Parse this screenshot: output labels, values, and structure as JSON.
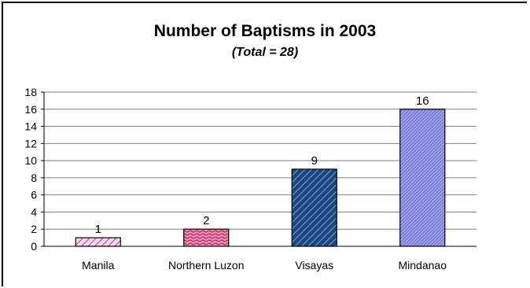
{
  "chart_data": {
    "type": "bar",
    "title": "Number of Baptisms in 2003",
    "subtitle": "(Total = 28)",
    "categories": [
      "Manila",
      "Northern Luzon",
      "Visayas",
      "Mindanao"
    ],
    "values": [
      1,
      2,
      9,
      16
    ],
    "data_labels": [
      "1",
      "2",
      "9",
      "16"
    ],
    "xlabel": "",
    "ylabel": "",
    "ylim": [
      0,
      18
    ],
    "yticks": [
      0,
      2,
      4,
      6,
      8,
      10,
      12,
      14,
      16,
      18
    ],
    "grid": true,
    "legend": "none",
    "bar_styles": [
      {
        "pattern": "diagonal-light",
        "fill": "#f7bfe4",
        "stroke": "#b0276e"
      },
      {
        "pattern": "wave",
        "fill": "#e05a8f",
        "stroke": "#8b1a4a"
      },
      {
        "pattern": "diagonal-bold",
        "fill": "#1f4e8c",
        "stroke": "#7fb0e8"
      },
      {
        "pattern": "crosshatch-fine",
        "fill": "#9c9ef0",
        "stroke": "#ffffff"
      }
    ]
  }
}
